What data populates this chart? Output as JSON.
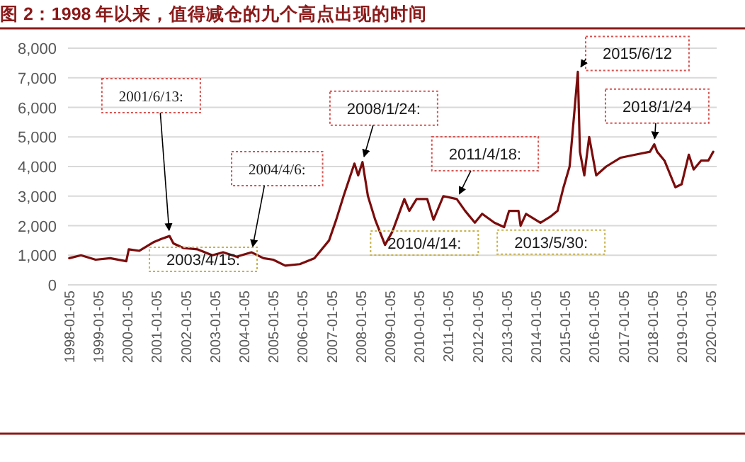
{
  "chart_data": {
    "type": "line",
    "title": "图 2：1998 年以来，值得减仓的九个高点出现的时间",
    "x": [
      "1998-01-05",
      "1998-06-01",
      "1998-12-01",
      "1999-06-01",
      "1999-12-20",
      "2000-01-20",
      "2000-06-01",
      "2000-12-01",
      "2001-03-01",
      "2001-06-13",
      "2001-08-01",
      "2001-12-01",
      "2002-06-01",
      "2002-12-01",
      "2003-04-15",
      "2003-10-01",
      "2004-04-06",
      "2004-09-01",
      "2005-01-01",
      "2005-06-01",
      "2005-12-01",
      "2006-06-01",
      "2006-12-01",
      "2007-03-01",
      "2007-06-01",
      "2007-10-15",
      "2007-12-01",
      "2008-01-24",
      "2008-04-01",
      "2008-07-01",
      "2008-11-01",
      "2009-02-01",
      "2009-07-01",
      "2009-09-01",
      "2009-12-01",
      "2010-04-14",
      "2010-07-01",
      "2010-11-01",
      "2011-04-18",
      "2011-08-01",
      "2011-12-01",
      "2012-03-01",
      "2012-08-01",
      "2012-12-01",
      "2013-02-01",
      "2013-05-30",
      "2013-06-25",
      "2013-09-01",
      "2014-03-01",
      "2014-07-01",
      "2014-10-01",
      "2014-12-15",
      "2015-03-01",
      "2015-06-12",
      "2015-07-08",
      "2015-09-01",
      "2015-11-01",
      "2016-01-28",
      "2016-06-01",
      "2016-12-01",
      "2017-06-01",
      "2017-12-01",
      "2018-01-24",
      "2018-03-01",
      "2018-06-01",
      "2018-10-15",
      "2019-01-01",
      "2019-04-01",
      "2019-06-01",
      "2019-09-01",
      "2019-12-01",
      "2020-02-01"
    ],
    "series": [
      {
        "color": "#7b0c0c",
        "values": [
          900,
          1000,
          850,
          900,
          800,
          1200,
          1150,
          1450,
          1550,
          1650,
          1400,
          1250,
          1200,
          1000,
          1100,
          950,
          1100,
          900,
          850,
          650,
          700,
          900,
          1500,
          2200,
          3000,
          4100,
          3700,
          4150,
          3000,
          2200,
          1350,
          1800,
          2900,
          2500,
          2900,
          2900,
          2200,
          3000,
          2900,
          2500,
          2100,
          2400,
          2100,
          1950,
          2500,
          2500,
          2000,
          2400,
          2100,
          2300,
          2500,
          3300,
          4000,
          7200,
          4500,
          3700,
          5000,
          3700,
          4000,
          4300,
          4400,
          4500,
          4750,
          4500,
          4200,
          3300,
          3400,
          4400,
          3900,
          4200,
          4200,
          4500
        ]
      }
    ],
    "xlim": [
      "1997-12-20",
      "2020-03-15"
    ],
    "xticks": [
      "1998-01-05",
      "1999-01-05",
      "2000-01-05",
      "2001-01-05",
      "2002-01-05",
      "2003-01-05",
      "2004-01-05",
      "2005-01-05",
      "2006-01-05",
      "2007-01-05",
      "2008-01-05",
      "2009-01-05",
      "2010-01-05",
      "2011-01-05",
      "2012-01-05",
      "2013-01-05",
      "2014-01-05",
      "2015-01-05",
      "2016-01-05",
      "2017-01-05",
      "2018-01-05",
      "2019-01-05",
      "2020-01-05"
    ],
    "ylim": [
      0,
      8000
    ],
    "yticks": [
      {
        "value": 0,
        "label": "0"
      },
      {
        "value": 1000,
        "label": "1,000"
      },
      {
        "value": 2000,
        "label": "2,000"
      },
      {
        "value": 3000,
        "label": "3,000"
      },
      {
        "value": 4000,
        "label": "4,000"
      },
      {
        "value": 5000,
        "label": "5,000"
      },
      {
        "value": 6000,
        "label": "6,000"
      },
      {
        "value": 7000,
        "label": "7,000"
      },
      {
        "value": 8000,
        "label": "8,000"
      }
    ],
    "grid": "y",
    "line_style": "solid",
    "marker": "none",
    "annotations": [
      {
        "text": "2001/6/13:",
        "x": "2001-06-13",
        "y": 1650
      },
      {
        "text": "2004/4/6:",
        "x": "2004-04-06",
        "y": 1100
      },
      {
        "text": "2008/1/24:",
        "x": "2008-01-24",
        "y": 4150
      },
      {
        "text": "2011/4/18:",
        "x": "2011-04-18",
        "y": 2900
      },
      {
        "text": "2015/6/12",
        "x": "2015-06-12",
        "y": 7200
      },
      {
        "text": "2018/1/24",
        "x": "2018-01-24",
        "y": 4750
      },
      {
        "text": "2003/4/15:",
        "x": "2003-04-15",
        "y": 1100
      },
      {
        "text": "2010/4/14:",
        "x": "2010-04-14",
        "y": 2900
      },
      {
        "text": "2013/5/30:",
        "x": "2013-05-30",
        "y": 2500
      }
    ]
  }
}
